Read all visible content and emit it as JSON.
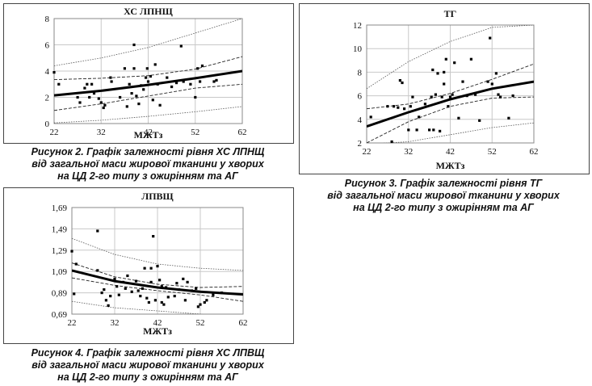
{
  "chart_data": [
    {
      "id": "c1",
      "type": "scatter",
      "title": "ХС ЛПНЩ",
      "xlabel": "МЖТз",
      "xlim": [
        22,
        62
      ],
      "ylim": [
        0,
        8
      ],
      "xticks": [
        "22",
        "32",
        "42",
        "52",
        "62"
      ],
      "yticks": [
        "0",
        "2",
        "4",
        "6",
        "8"
      ],
      "points": [
        [
          22,
          3.9
        ],
        [
          23,
          3.0
        ],
        [
          27,
          2.0
        ],
        [
          27.5,
          1.6
        ],
        [
          28.5,
          2.7
        ],
        [
          29,
          3.0
        ],
        [
          29.5,
          2.0
        ],
        [
          30,
          3.0
        ],
        [
          30.5,
          2.3
        ],
        [
          31.5,
          1.9
        ],
        [
          32,
          1.6
        ],
        [
          32.5,
          1.2
        ],
        [
          32.8,
          1.4
        ],
        [
          34,
          3.5
        ],
        [
          34.2,
          3.2
        ],
        [
          36,
          2.0
        ],
        [
          37,
          4.2
        ],
        [
          37.5,
          1.3
        ],
        [
          38,
          3.0
        ],
        [
          38.5,
          2.3
        ],
        [
          39,
          4.2
        ],
        [
          39,
          6.0
        ],
        [
          39.5,
          2.1
        ],
        [
          40,
          1.5
        ],
        [
          40.5,
          2.9
        ],
        [
          41,
          2.6
        ],
        [
          41.5,
          3.5
        ],
        [
          41.8,
          4.2
        ],
        [
          42,
          3.2
        ],
        [
          42.5,
          3.6
        ],
        [
          43,
          1.8
        ],
        [
          43.5,
          4.5
        ],
        [
          44,
          3.0
        ],
        [
          44.5,
          1.4
        ],
        [
          46,
          3.5
        ],
        [
          47,
          2.8
        ],
        [
          48,
          3.1
        ],
        [
          49,
          5.9
        ],
        [
          49.5,
          3.2
        ],
        [
          51,
          3.0
        ],
        [
          52,
          2.0
        ],
        [
          52.5,
          4.2
        ],
        [
          53,
          3.2
        ],
        [
          53.5,
          4.4
        ],
        [
          56,
          3.2
        ],
        [
          56.5,
          3.3
        ]
      ],
      "trend": [
        [
          22,
          2.15
        ],
        [
          32,
          2.5
        ],
        [
          42,
          2.95
        ],
        [
          52,
          3.45
        ],
        [
          62,
          4.0
        ]
      ],
      "ci_upper": [
        [
          22,
          3.35
        ],
        [
          32,
          3.45
        ],
        [
          42,
          3.65
        ],
        [
          52,
          4.15
        ],
        [
          62,
          5.1
        ]
      ],
      "ci_lower": [
        [
          22,
          1.0
        ],
        [
          32,
          1.5
        ],
        [
          42,
          2.1
        ],
        [
          52,
          2.7
        ],
        [
          62,
          3.0
        ]
      ],
      "pi_upper": [
        [
          22,
          4.4
        ],
        [
          32,
          5.0
        ],
        [
          42,
          5.8
        ],
        [
          52,
          6.9
        ],
        [
          62,
          8.0
        ]
      ],
      "pi_lower": [
        [
          22,
          0.05
        ],
        [
          32,
          0.25
        ],
        [
          42,
          0.55
        ],
        [
          52,
          0.9
        ],
        [
          62,
          1.3
        ]
      ],
      "grid": true,
      "caption": [
        "Рисунок 2. Графік залежності рівня ХС ЛПНЩ",
        "від загальної маси жирової тканини у хворих",
        "на ЦД 2-го типу з ожирінням та АГ"
      ]
    },
    {
      "id": "c2",
      "type": "scatter",
      "title": "ТГ",
      "xlabel": "МЖТз",
      "xlim": [
        22,
        62
      ],
      "ylim": [
        2,
        12
      ],
      "xticks": [
        "22",
        "32",
        "42",
        "52",
        "62"
      ],
      "yticks": [
        "2",
        "4",
        "6",
        "8",
        "10",
        "12"
      ],
      "points": [
        [
          23,
          4.2
        ],
        [
          27,
          5.1
        ],
        [
          28,
          2.1
        ],
        [
          28.5,
          5.1
        ],
        [
          29.5,
          5.0
        ],
        [
          30,
          7.3
        ],
        [
          30.5,
          7.1
        ],
        [
          31,
          4.9
        ],
        [
          32,
          3.1
        ],
        [
          32.5,
          5.1
        ],
        [
          33,
          5.9
        ],
        [
          34,
          3.1
        ],
        [
          34.5,
          4.2
        ],
        [
          36,
          5.3
        ],
        [
          37,
          3.1
        ],
        [
          37.5,
          5.9
        ],
        [
          37.8,
          8.2
        ],
        [
          38,
          3.1
        ],
        [
          38.5,
          6.1
        ],
        [
          39,
          7.9
        ],
        [
          39.5,
          3.0
        ],
        [
          40,
          5.9
        ],
        [
          40.5,
          7.0
        ],
        [
          40.5,
          8.0
        ],
        [
          41,
          9.1
        ],
        [
          41.5,
          5.1
        ],
        [
          42,
          5.9
        ],
        [
          42.5,
          6.1
        ],
        [
          43,
          8.8
        ],
        [
          44,
          4.1
        ],
        [
          45,
          7.2
        ],
        [
          46,
          6.0
        ],
        [
          47,
          9.1
        ],
        [
          48,
          6.1
        ],
        [
          49,
          3.9
        ],
        [
          51,
          7.2
        ],
        [
          51.5,
          10.9
        ],
        [
          52,
          7.0
        ],
        [
          53,
          7.9
        ],
        [
          53.5,
          6.1
        ],
        [
          54,
          5.9
        ],
        [
          56,
          4.1
        ],
        [
          57,
          6.0
        ]
      ],
      "trend": [
        [
          22,
          3.4
        ],
        [
          32,
          4.6
        ],
        [
          42,
          5.7
        ],
        [
          52,
          6.6
        ],
        [
          62,
          7.2
        ]
      ],
      "ci_upper": [
        [
          22,
          4.9
        ],
        [
          32,
          5.3
        ],
        [
          42,
          6.2
        ],
        [
          52,
          7.4
        ],
        [
          62,
          8.7
        ]
      ],
      "ci_lower": [
        [
          22,
          2.0
        ],
        [
          32,
          3.8
        ],
        [
          42,
          5.1
        ],
        [
          52,
          5.8
        ],
        [
          62,
          5.9
        ]
      ],
      "pi_upper": [
        [
          22,
          6.6
        ],
        [
          32,
          8.9
        ],
        [
          42,
          10.6
        ],
        [
          52,
          11.8
        ],
        [
          62,
          12.0
        ]
      ],
      "pi_lower": [
        [
          22,
          1.9
        ],
        [
          32,
          2.1
        ],
        [
          42,
          2.7
        ],
        [
          52,
          3.3
        ],
        [
          62,
          3.7
        ]
      ],
      "grid": true,
      "caption": [
        "Рисунок 3. Графік залежності рівня ТГ",
        "від загальної маси жирової тканини у хворих",
        "на ЦД 2-го типу з ожирінням та АГ"
      ]
    },
    {
      "id": "c3",
      "type": "scatter",
      "title": "ЛПВЩ",
      "xlabel": "МЖТз",
      "xlim": [
        22,
        62
      ],
      "ylim": [
        0.69,
        1.69
      ],
      "xticks": [
        "22",
        "32",
        "42",
        "52",
        "62"
      ],
      "yticks": [
        "0,69",
        "0,89",
        "1,09",
        "1,29",
        "1,49",
        "1,69"
      ],
      "points": [
        [
          22,
          1.28
        ],
        [
          22.5,
          0.88
        ],
        [
          23,
          1.16
        ],
        [
          28,
          1.47
        ],
        [
          28,
          1.1
        ],
        [
          29,
          0.89
        ],
        [
          29.5,
          0.92
        ],
        [
          30,
          0.82
        ],
        [
          30.5,
          0.77
        ],
        [
          31,
          0.86
        ],
        [
          32,
          1.02
        ],
        [
          32.5,
          0.95
        ],
        [
          33,
          0.87
        ],
        [
          34,
          0.99
        ],
        [
          34.5,
          0.93
        ],
        [
          35,
          1.05
        ],
        [
          36,
          0.9
        ],
        [
          37,
          1.0
        ],
        [
          37.5,
          0.91
        ],
        [
          38,
          0.86
        ],
        [
          38.5,
          0.93
        ],
        [
          39,
          1.12
        ],
        [
          39.5,
          0.84
        ],
        [
          40,
          0.8
        ],
        [
          40.5,
          1.12
        ],
        [
          40.5,
          0.99
        ],
        [
          41,
          1.42
        ],
        [
          41.5,
          0.82
        ],
        [
          42,
          1.14
        ],
        [
          42.5,
          1.01
        ],
        [
          43,
          0.95
        ],
        [
          43,
          0.8
        ],
        [
          43.5,
          0.78
        ],
        [
          44,
          0.94
        ],
        [
          44.5,
          0.85
        ],
        [
          46,
          0.86
        ],
        [
          46.5,
          0.98
        ],
        [
          47,
          0.92
        ],
        [
          48,
          1.02
        ],
        [
          48.5,
          0.82
        ],
        [
          49,
          0.99
        ],
        [
          50,
          0.91
        ],
        [
          51,
          0.93
        ],
        [
          51.5,
          0.76
        ],
        [
          52,
          0.78
        ],
        [
          53,
          0.8
        ],
        [
          53.5,
          0.82
        ],
        [
          55,
          0.87
        ],
        [
          57,
          0.89
        ]
      ],
      "trend": [
        [
          22,
          1.1
        ],
        [
          32,
          1.0
        ],
        [
          42,
          0.94
        ],
        [
          52,
          0.9
        ],
        [
          62,
          0.875
        ]
      ],
      "ci_upper": [
        [
          22,
          1.17
        ],
        [
          32,
          1.04
        ],
        [
          42,
          0.97
        ],
        [
          52,
          0.94
        ],
        [
          62,
          0.95
        ]
      ],
      "ci_lower": [
        [
          22,
          1.03
        ],
        [
          32,
          0.96
        ],
        [
          42,
          0.91
        ],
        [
          52,
          0.87
        ],
        [
          62,
          0.81
        ]
      ],
      "pi_upper": [
        [
          22,
          1.4
        ],
        [
          32,
          1.25
        ],
        [
          42,
          1.16
        ],
        [
          52,
          1.12
        ],
        [
          62,
          1.1
        ]
      ],
      "pi_lower": [
        [
          22,
          0.81
        ],
        [
          32,
          0.75
        ],
        [
          42,
          0.72
        ],
        [
          52,
          0.69
        ],
        [
          62,
          0.65
        ]
      ],
      "grid": true,
      "caption": [
        "Рисунок 4. Графік залежності рівня ХС ЛПВЩ",
        "від загальної маси жирової тканини у хворих",
        "на ЦД 2-го типу з ожирінням та АГ"
      ]
    }
  ]
}
